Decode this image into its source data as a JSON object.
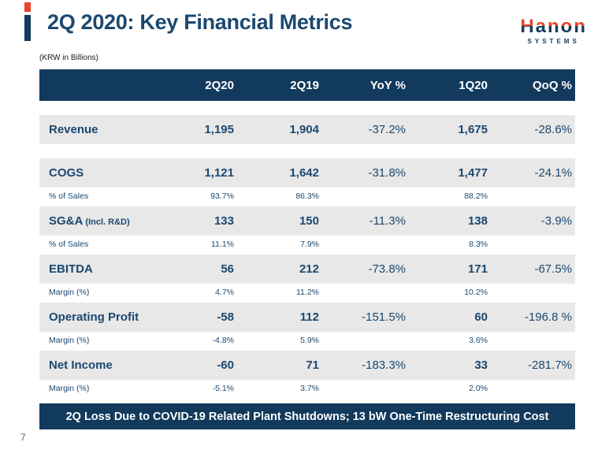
{
  "slide": {
    "title": "2Q 2020: Key Financial Metrics",
    "units_note": "(KRW in Billions)",
    "footer_banner": "2Q Loss Due to COVID-19 Related Plant Shutdowns; 13 bW One-Time Restructuring Cost",
    "page_number": "7"
  },
  "logo": {
    "brand": "Hanon",
    "sub": "SYSTEMS"
  },
  "colors": {
    "navy": "#123A5C",
    "navy_text": "#1B4870",
    "orange": "#E8432B",
    "row_gray": "#E8E8E8"
  },
  "table": {
    "columns": [
      "",
      "2Q20",
      "2Q19",
      "YoY %",
      "1Q20",
      "QoQ %"
    ],
    "rows": [
      {
        "type": "main",
        "label": "Revenue",
        "label_suffix": "",
        "values": [
          "1,195",
          "1,904",
          "-37.2%",
          "1,675",
          "-28.6%"
        ]
      },
      {
        "type": "main",
        "label": "COGS",
        "label_suffix": "",
        "values": [
          "1,121",
          "1,642",
          "-31.8%",
          "1,477",
          "-24.1%"
        ]
      },
      {
        "type": "sub",
        "label": "% of Sales",
        "label_suffix": "",
        "values": [
          "93.7%",
          "86.3%",
          "",
          "88.2%",
          ""
        ]
      },
      {
        "type": "main",
        "label": "SG&A",
        "label_suffix": "(Incl. R&D)",
        "values": [
          "133",
          "150",
          "-11.3%",
          "138",
          "-3.9%"
        ]
      },
      {
        "type": "sub",
        "label": "% of Sales",
        "label_suffix": "",
        "values": [
          "11.1%",
          "7.9%",
          "",
          "8.3%",
          ""
        ]
      },
      {
        "type": "main",
        "label": "EBITDA",
        "label_suffix": "",
        "values": [
          "56",
          "212",
          "-73.8%",
          "171",
          "-67.5%"
        ]
      },
      {
        "type": "sub",
        "label": "Margin (%)",
        "label_suffix": "",
        "values": [
          "4.7%",
          "11.2%",
          "",
          "10.2%",
          ""
        ]
      },
      {
        "type": "main",
        "label": "Operating Profit",
        "label_suffix": "",
        "values": [
          "-58",
          "112",
          "-151.5%",
          "60",
          "-196.8 %"
        ]
      },
      {
        "type": "sub",
        "label": "Margin (%)",
        "label_suffix": "",
        "values": [
          "-4.8%",
          "5.9%",
          "",
          "3.6%",
          ""
        ]
      },
      {
        "type": "main",
        "label": "Net Income",
        "label_suffix": "",
        "values": [
          "-60",
          "71",
          "-183.3%",
          "33",
          "-281.7%"
        ]
      },
      {
        "type": "sub",
        "label": "Margin (%)",
        "label_suffix": "",
        "values": [
          "-5.1%",
          "3.7%",
          "",
          "2.0%",
          ""
        ]
      }
    ]
  }
}
